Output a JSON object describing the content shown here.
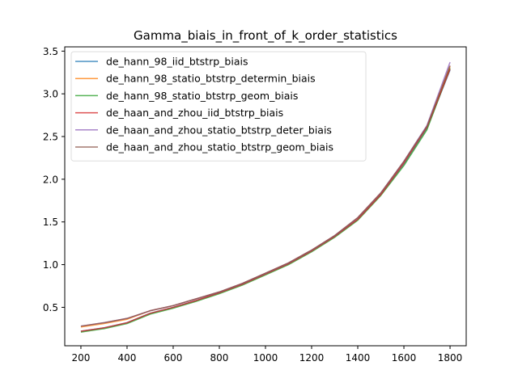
{
  "chart_data": {
    "type": "line",
    "title": "Gamma_biais_in_front_of_k_order_statistics",
    "xlabel": "",
    "ylabel": "",
    "xlim": [
      130,
      1870
    ],
    "ylim": [
      0.05,
      3.55
    ],
    "xticks": [
      200,
      400,
      600,
      800,
      1000,
      1200,
      1400,
      1600,
      1800
    ],
    "xtick_labels": [
      "200",
      "400",
      "600",
      "800",
      "1000",
      "1200",
      "1400",
      "1600",
      "1800"
    ],
    "yticks": [
      0.5,
      1.0,
      1.5,
      2.0,
      2.5,
      3.0,
      3.5
    ],
    "ytick_labels": [
      "0.5",
      "1.0",
      "1.5",
      "2.0",
      "2.5",
      "3.0",
      "3.5"
    ],
    "grid": false,
    "legend_position": "upper-left",
    "x": [
      200,
      300,
      400,
      500,
      600,
      700,
      800,
      900,
      1000,
      1100,
      1200,
      1300,
      1400,
      1500,
      1600,
      1700,
      1800
    ],
    "series": [
      {
        "name": "de_hann_98_iid_btstrp_biais",
        "color": "#1f77b4",
        "values": [
          0.22,
          0.26,
          0.32,
          0.43,
          0.5,
          0.58,
          0.67,
          0.77,
          0.89,
          1.01,
          1.16,
          1.33,
          1.53,
          1.82,
          2.18,
          2.6,
          3.28
        ]
      },
      {
        "name": "de_hann_98_statio_btstrp_determin_biais",
        "color": "#ff7f0e",
        "values": [
          0.27,
          0.31,
          0.36,
          0.46,
          0.52,
          0.6,
          0.68,
          0.78,
          0.9,
          1.02,
          1.17,
          1.34,
          1.55,
          1.84,
          2.2,
          2.62,
          3.32
        ]
      },
      {
        "name": "de_hann_98_statio_btstrp_geom_biais",
        "color": "#2ca02c",
        "values": [
          0.21,
          0.25,
          0.31,
          0.42,
          0.49,
          0.57,
          0.66,
          0.76,
          0.88,
          1.0,
          1.15,
          1.32,
          1.52,
          1.81,
          2.16,
          2.58,
          3.3
        ]
      },
      {
        "name": "de_haan_and_zhou_iid_btstrp_biais",
        "color": "#d62728",
        "values": [
          0.22,
          0.26,
          0.32,
          0.43,
          0.5,
          0.58,
          0.67,
          0.77,
          0.89,
          1.01,
          1.16,
          1.33,
          1.53,
          1.82,
          2.19,
          2.61,
          3.29
        ]
      },
      {
        "name": "de_haan_and_zhou_statio_btstrp_deter_biais",
        "color": "#9467bd",
        "values": [
          0.28,
          0.32,
          0.37,
          0.46,
          0.52,
          0.6,
          0.68,
          0.78,
          0.9,
          1.02,
          1.17,
          1.34,
          1.55,
          1.84,
          2.21,
          2.63,
          3.37
        ]
      },
      {
        "name": "de_haan_and_zhou_statio_btstrp_geom_biais",
        "color": "#8c564b",
        "values": [
          0.28,
          0.32,
          0.37,
          0.46,
          0.52,
          0.6,
          0.68,
          0.78,
          0.9,
          1.02,
          1.17,
          1.34,
          1.55,
          1.84,
          2.21,
          2.62,
          3.33
        ]
      }
    ]
  }
}
